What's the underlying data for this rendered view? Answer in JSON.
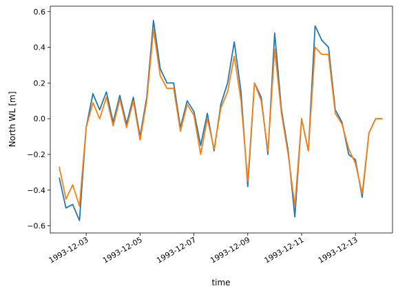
{
  "chart_data": {
    "type": "line",
    "title": "",
    "xlabel": "time",
    "ylabel": "North WL [m]",
    "xlim": [
      "1993-12-01T16:00",
      "1993-12-14T09:00"
    ],
    "ylim": [
      -0.64,
      0.63
    ],
    "x_ticks": [
      "1993-12-03",
      "1993-12-05",
      "1993-12-07",
      "1993-12-09",
      "1993-12-11",
      "1993-12-13"
    ],
    "y_ticks": [
      "−0.6",
      "−0.4",
      "−0.2",
      "0.0",
      "0.2",
      "0.4",
      "0.6"
    ],
    "grid": false,
    "x": [
      "1993-12-02T00:00",
      "1993-12-02T06:00",
      "1993-12-02T12:00",
      "1993-12-02T18:00",
      "1993-12-03T00:00",
      "1993-12-03T06:00",
      "1993-12-03T12:00",
      "1993-12-03T18:00",
      "1993-12-04T00:00",
      "1993-12-04T06:00",
      "1993-12-04T12:00",
      "1993-12-04T18:00",
      "1993-12-05T00:00",
      "1993-12-05T06:00",
      "1993-12-05T12:00",
      "1993-12-05T18:00",
      "1993-12-06T00:00",
      "1993-12-06T06:00",
      "1993-12-06T12:00",
      "1993-12-06T18:00",
      "1993-12-07T00:00",
      "1993-12-07T06:00",
      "1993-12-07T12:00",
      "1993-12-07T18:00",
      "1993-12-08T00:00",
      "1993-12-08T06:00",
      "1993-12-08T12:00",
      "1993-12-08T18:00",
      "1993-12-09T00:00",
      "1993-12-09T06:00",
      "1993-12-09T12:00",
      "1993-12-09T18:00",
      "1993-12-10T00:00",
      "1993-12-10T06:00",
      "1993-12-10T12:00",
      "1993-12-10T18:00",
      "1993-12-11T00:00",
      "1993-12-11T06:00",
      "1993-12-11T12:00",
      "1993-12-11T18:00",
      "1993-12-12T00:00",
      "1993-12-12T06:00",
      "1993-12-12T12:00",
      "1993-12-12T18:00",
      "1993-12-13T00:00",
      "1993-12-13T06:00",
      "1993-12-13T12:00",
      "1993-12-13T18:00",
      "1993-12-14T00:00"
    ],
    "series": [
      {
        "color": "#1f77b4",
        "values": [
          -0.33,
          -0.5,
          -0.48,
          -0.57,
          -0.05,
          0.14,
          0.05,
          0.15,
          -0.02,
          0.13,
          -0.03,
          0.12,
          -0.1,
          0.12,
          0.55,
          0.28,
          0.2,
          0.2,
          -0.05,
          0.1,
          0.04,
          -0.15,
          0.03,
          -0.18,
          0.08,
          0.2,
          0.43,
          0.15,
          -0.38,
          0.2,
          0.12,
          -0.2,
          0.48,
          0.05,
          -0.18,
          -0.55,
          0.0,
          -0.18,
          0.52,
          0.44,
          0.4,
          0.05,
          -0.02,
          -0.2,
          -0.23,
          -0.44,
          -0.08,
          0.0,
          0.0
        ]
      },
      {
        "color": "#ff7f0e",
        "values": [
          -0.27,
          -0.45,
          -0.37,
          -0.49,
          -0.05,
          0.09,
          0.0,
          0.12,
          -0.04,
          0.11,
          -0.05,
          0.1,
          -0.12,
          0.1,
          0.5,
          0.24,
          0.17,
          0.17,
          -0.07,
          0.08,
          0.02,
          -0.2,
          0.0,
          -0.17,
          0.06,
          0.15,
          0.35,
          0.1,
          -0.35,
          0.2,
          0.1,
          -0.18,
          0.39,
          0.03,
          -0.2,
          -0.49,
          0.0,
          -0.18,
          0.4,
          0.36,
          0.36,
          0.03,
          -0.03,
          -0.17,
          -0.25,
          -0.42,
          -0.08,
          0.0,
          0.0
        ]
      }
    ]
  }
}
